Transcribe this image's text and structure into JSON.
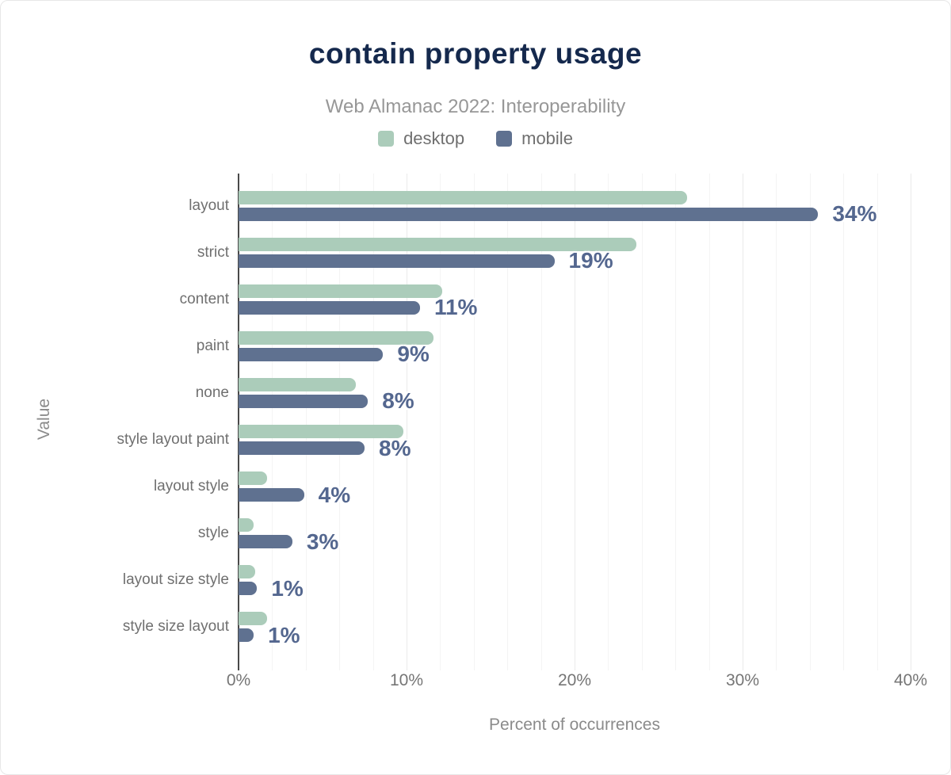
{
  "chart_data": {
    "type": "bar",
    "orientation": "horizontal",
    "title": "contain property usage",
    "subtitle": "Web Almanac 2022: Interoperability",
    "xlabel": "Percent of occurrences",
    "ylabel": "Value",
    "xlim": [
      0,
      40
    ],
    "x_tick_step": 10,
    "minor_grid_step": 2,
    "grid": true,
    "legend_position": "top",
    "categories": [
      "layout",
      "strict",
      "content",
      "paint",
      "none",
      "style layout paint",
      "layout style",
      "style",
      "layout size style",
      "style size layout"
    ],
    "series": [
      {
        "name": "desktop",
        "color": "#abccba",
        "values": [
          26.7,
          23.7,
          12.1,
          11.6,
          7.0,
          9.8,
          1.7,
          0.9,
          1.0,
          1.7
        ]
      },
      {
        "name": "mobile",
        "color": "#5f7190",
        "values": [
          34.5,
          18.8,
          10.8,
          8.6,
          7.7,
          7.5,
          3.9,
          3.2,
          1.1,
          0.9
        ]
      }
    ],
    "data_labels": [
      "34%",
      "19%",
      "11%",
      "9%",
      "8%",
      "8%",
      "4%",
      "3%",
      "1%",
      "1%"
    ],
    "data_label_series": "mobile"
  },
  "axes": {
    "x_ticks": [
      "0%",
      "10%",
      "20%",
      "30%",
      "40%"
    ]
  },
  "colors": {
    "title": "#15294d",
    "subtitle": "#979797",
    "data_label": "#54678f",
    "axis_line": "#4a4a4a",
    "grid_minor": "#f4f4f4",
    "grid_major": "#eaeaea"
  }
}
